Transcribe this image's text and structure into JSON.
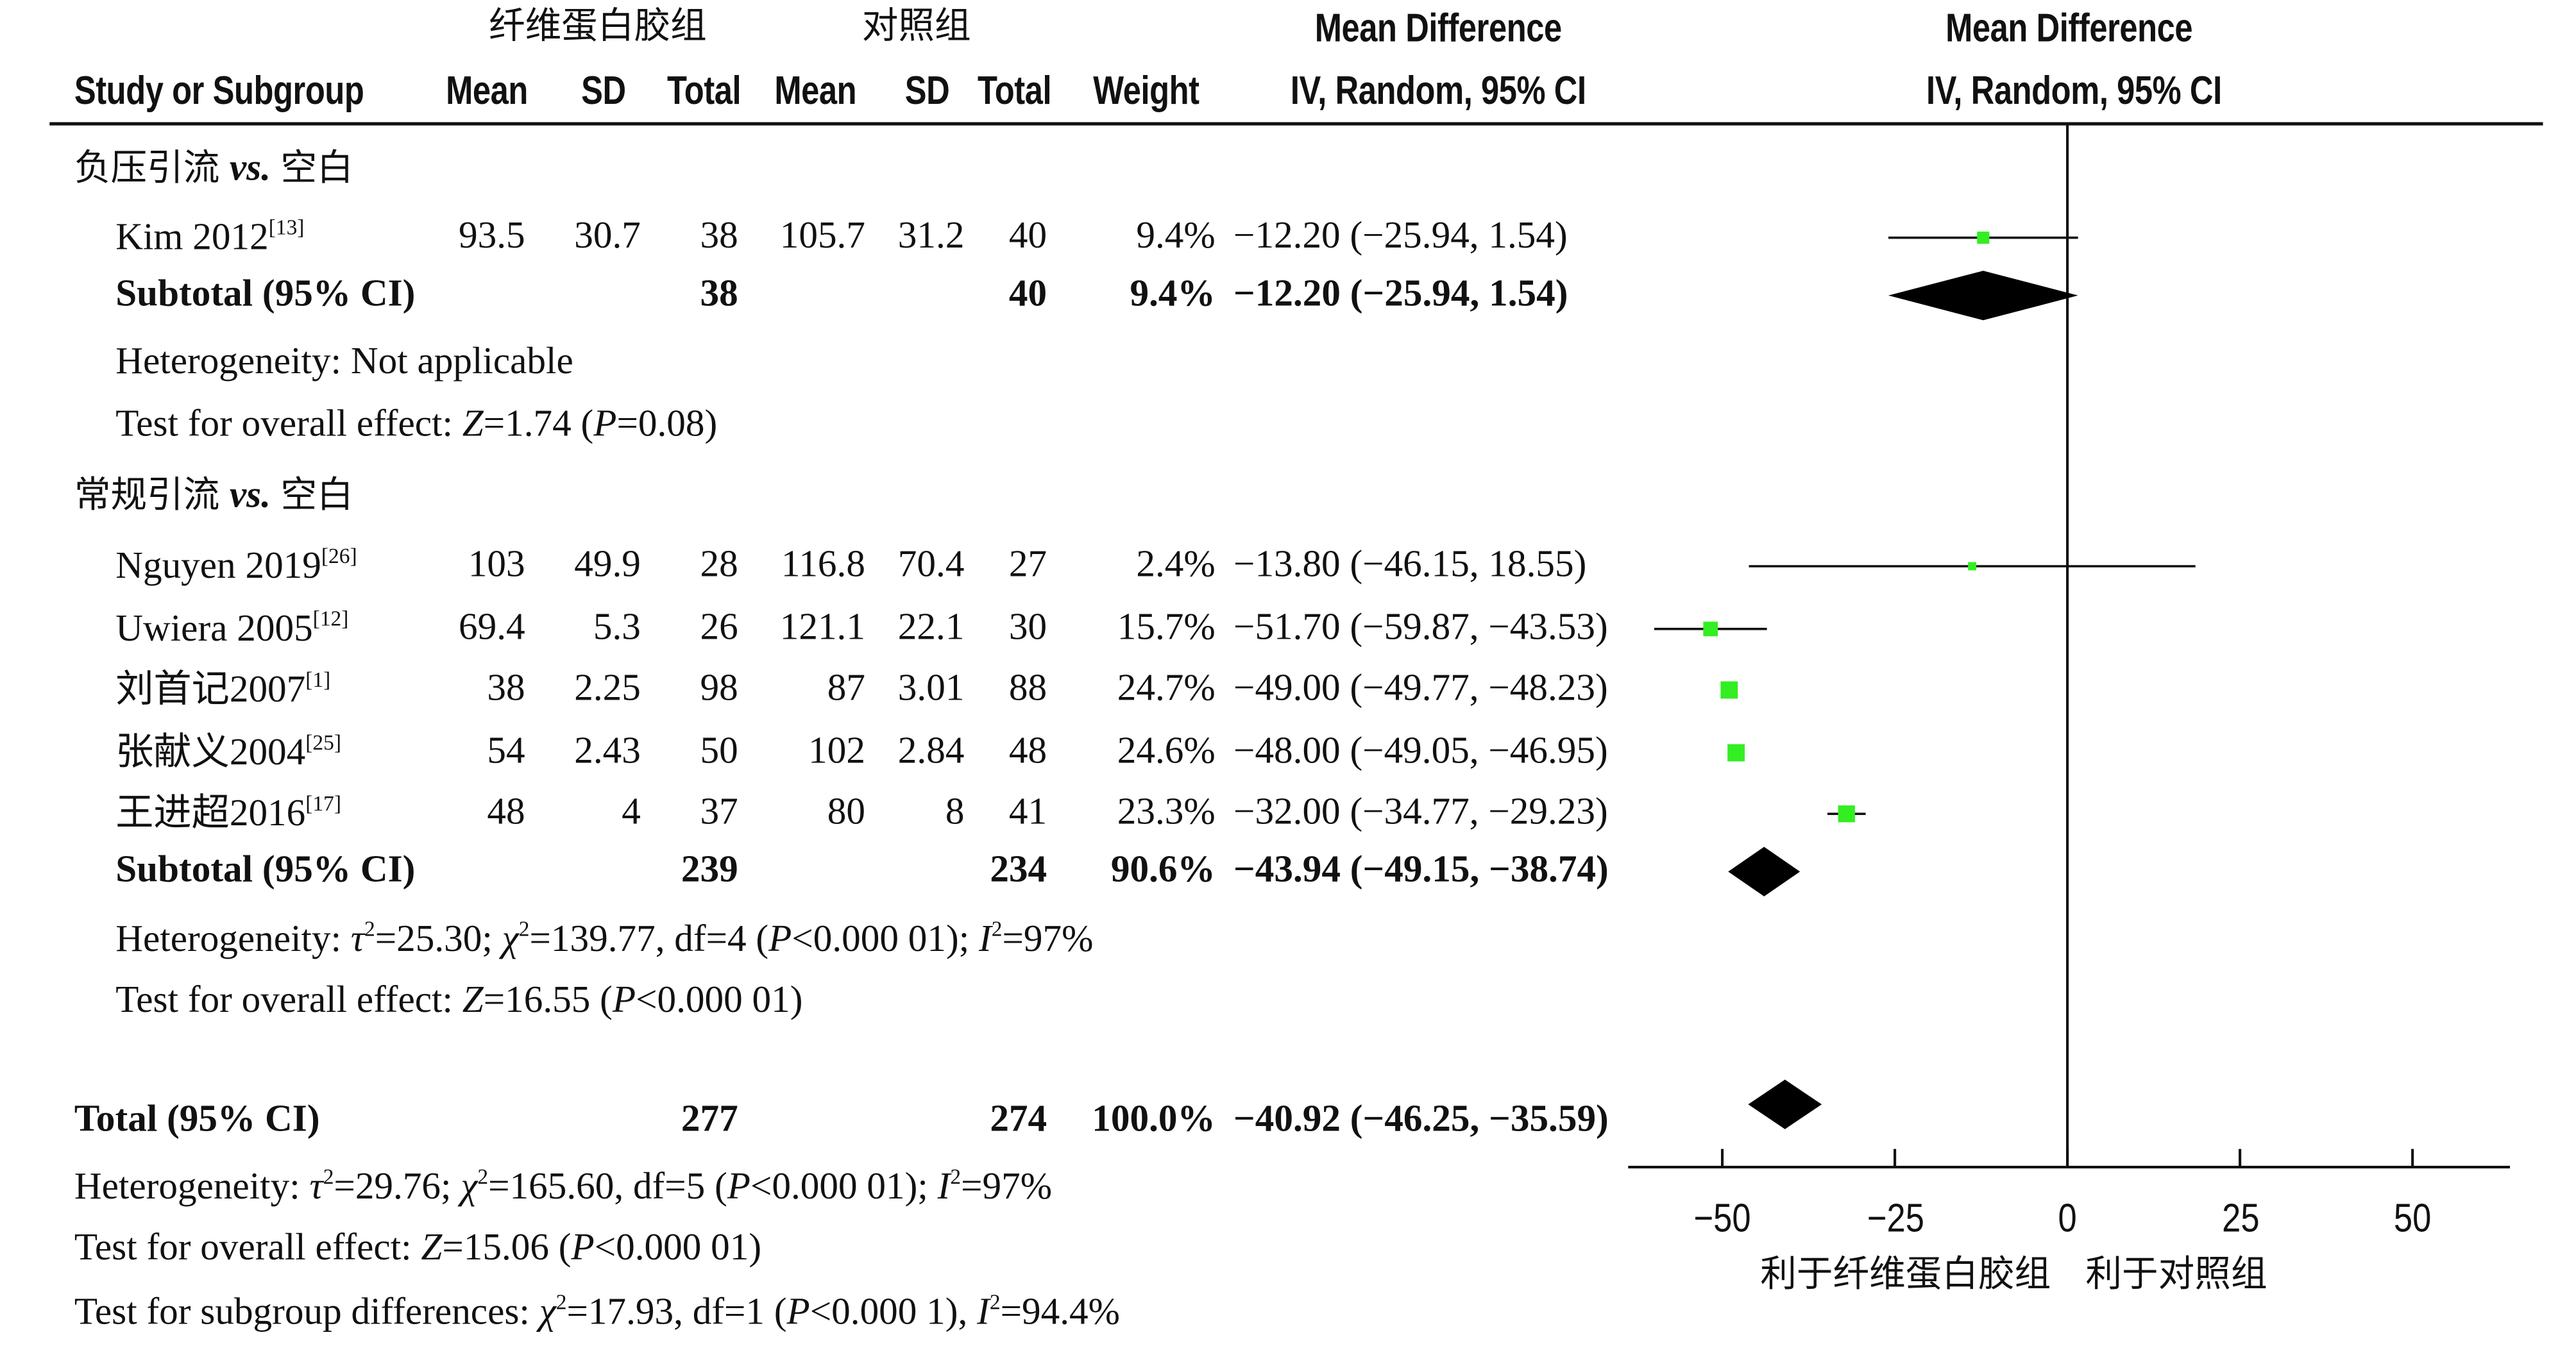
{
  "header": {
    "group1": "纤维蛋白胶组",
    "group2": "对照组",
    "mean_difference": "Mean Difference",
    "study_or_subgroup": "Study or Subgroup",
    "mean": "Mean",
    "sd": "SD",
    "total": "Total",
    "weight": "Weight",
    "method": "IV, Random, 95% CI"
  },
  "subgroups": [
    {
      "title_cjk_a": "负压引流",
      "title_vs": "vs.",
      "title_cjk_b": "空白",
      "studies": [
        {
          "name": "Kim 2012",
          "ref": "[13]",
          "m1": "93.5",
          "sd1": "30.7",
          "n1": "38",
          "m2": "105.7",
          "sd2": "31.2",
          "n2": "40",
          "weight": "9.4%",
          "ci_text": "−12.20 (−25.94, 1.54)",
          "md": -12.2,
          "lo": -25.94,
          "hi": 1.54,
          "w": 9.4
        }
      ],
      "subtotal": {
        "label": "Subtotal (95% CI)",
        "n1": "38",
        "n2": "40",
        "weight": "9.4%",
        "ci_text": "−12.20 (−25.94, 1.54)",
        "md": -12.2,
        "lo": -25.94,
        "hi": 1.54
      },
      "het_label": "Heterogeneity: ",
      "het_value": "Not applicable",
      "test_label": "Test for overall effect: ",
      "test_z": "Z",
      "test_z_val": "=1.74 (",
      "test_p": "P",
      "test_p_val": "=0.08)"
    },
    {
      "title_cjk_a": "常规引流",
      "title_vs": "vs.",
      "title_cjk_b": "空白",
      "studies": [
        {
          "name": "Nguyen 2019",
          "ref": "[26]",
          "m1": "103",
          "sd1": "49.9",
          "n1": "28",
          "m2": "116.8",
          "sd2": "70.4",
          "n2": "27",
          "weight": "2.4%",
          "ci_text": "−13.80 (−46.15, 18.55)",
          "md": -13.8,
          "lo": -46.15,
          "hi": 18.55,
          "w": 2.4
        },
        {
          "name": "Uwiera 2005",
          "ref": "[12]",
          "m1": "69.4",
          "sd1": "5.3",
          "n1": "26",
          "m2": "121.1",
          "sd2": "22.1",
          "n2": "30",
          "weight": "15.7%",
          "ci_text": "−51.70 (−59.87, −43.53)",
          "md": -51.7,
          "lo": -59.87,
          "hi": -43.53,
          "w": 15.7
        },
        {
          "name": "刘首记2007",
          "ref": "[1]",
          "m1": "38",
          "sd1": "2.25",
          "n1": "98",
          "m2": "87",
          "sd2": "3.01",
          "n2": "88",
          "weight": "24.7%",
          "ci_text": "−49.00 (−49.77, −48.23)",
          "md": -49.0,
          "lo": -49.77,
          "hi": -48.23,
          "w": 24.7
        },
        {
          "name": "张献义2004",
          "ref": "[25]",
          "m1": "54",
          "sd1": "2.43",
          "n1": "50",
          "m2": "102",
          "sd2": "2.84",
          "n2": "48",
          "weight": "24.6%",
          "ci_text": "−48.00 (−49.05, −46.95)",
          "md": -48.0,
          "lo": -49.05,
          "hi": -46.95,
          "w": 24.6
        },
        {
          "name": "王进超2016",
          "ref": "[17]",
          "m1": "48",
          "sd1": "4",
          "n1": "37",
          "m2": "80",
          "sd2": "8",
          "n2": "41",
          "weight": "23.3%",
          "ci_text": "−32.00 (−34.77, −29.23)",
          "md": -32.0,
          "lo": -34.77,
          "hi": -29.23,
          "w": 23.3
        }
      ],
      "subtotal": {
        "label": "Subtotal (95% CI)",
        "n1": "239",
        "n2": "234",
        "weight": "90.6%",
        "ci_text": "−43.94 (−49.15, −38.74)",
        "md": -43.94,
        "lo": -49.15,
        "hi": -38.74
      },
      "het_label": "Heterogeneity: ",
      "het_tau": "τ",
      "het_tau_val": "=25.30; ",
      "het_chi": "χ",
      "het_chi_val": "=139.77, df=4 (",
      "het_p": "P",
      "het_p_val": "<0.000 01); ",
      "het_i": "I",
      "het_i_val": "=97%",
      "test_label": "Test for overall effect: ",
      "test_z": "Z",
      "test_z_val": "=16.55 (",
      "test_p": "P",
      "test_p_val": "<0.000 01)"
    }
  ],
  "total": {
    "label": "Total (95% CI)",
    "n1": "277",
    "n2": "274",
    "weight": "100.0%",
    "ci_text": "−40.92 (−46.25, −35.59)",
    "md": -40.92,
    "lo": -46.25,
    "hi": -35.59,
    "het_label": "Heterogeneity: ",
    "het_tau": "τ",
    "het_tau_val": "=29.76; ",
    "het_chi": "χ",
    "het_chi_val": "=165.60, df=5 (",
    "het_p": "P",
    "het_p_val": "<0.000 01); ",
    "het_i": "I",
    "het_i_val": "=97%",
    "test_label": "Test for overall effect: ",
    "test_z": "Z",
    "test_z_val": "=15.06 (",
    "test_p": "P",
    "test_p_val": "<0.000 01)",
    "sub_label": "Test for subgroup differences: ",
    "sub_chi": "χ",
    "sub_chi_val": "=17.93, df=1 (",
    "sub_p": "P",
    "sub_p_val": "<0.000 1), ",
    "sub_i": "I",
    "sub_i_val": "=94.4%"
  },
  "superscript_two": "2",
  "axis": {
    "left_label": "利于纤维蛋白胶组",
    "right_label": "利于对照组"
  },
  "colors": {
    "study_square": "#33ee22",
    "diamond": "#000000",
    "text": "#111111"
  },
  "chart_data": {
    "type": "forest",
    "xlim": [
      -50,
      50
    ],
    "x_ticks": [
      -50,
      -25,
      0,
      25,
      50
    ],
    "x_tick_labels": [
      "−50",
      "−25",
      "0",
      "25",
      "50"
    ],
    "null_line": 0,
    "grid": false
  }
}
